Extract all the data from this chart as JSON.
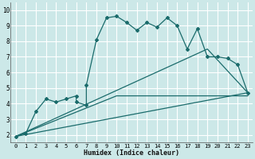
{
  "xlabel": "Humidex (Indice chaleur)",
  "bg_color": "#cce8e8",
  "grid_color": "#ffffff",
  "line_color": "#1a6b6b",
  "xlim": [
    -0.5,
    23.5
  ],
  "ylim": [
    1.5,
    10.5
  ],
  "xticks": [
    0,
    1,
    2,
    3,
    4,
    5,
    6,
    7,
    8,
    9,
    10,
    11,
    12,
    13,
    14,
    15,
    16,
    17,
    18,
    19,
    20,
    21,
    22,
    23
  ],
  "yticks": [
    2,
    3,
    4,
    5,
    6,
    7,
    8,
    9,
    10
  ],
  "line1_x": [
    0,
    1,
    2,
    3,
    4,
    5,
    6,
    6,
    7,
    7,
    8,
    9,
    10,
    11,
    12,
    13,
    14,
    15,
    16,
    17,
    18,
    19,
    20,
    21,
    22,
    23
  ],
  "line1_y": [
    1.9,
    2.1,
    3.5,
    4.3,
    4.1,
    4.3,
    4.5,
    4.1,
    3.9,
    5.2,
    8.1,
    9.5,
    9.6,
    9.2,
    8.7,
    9.2,
    8.9,
    9.5,
    9.0,
    7.5,
    8.8,
    7.0,
    7.0,
    6.9,
    6.5,
    4.7
  ],
  "line2_x": [
    0,
    23
  ],
  "line2_y": [
    1.9,
    4.7
  ],
  "line3_x": [
    0,
    19,
    23
  ],
  "line3_y": [
    1.9,
    7.5,
    4.7
  ],
  "line4_x": [
    0,
    10,
    23
  ],
  "line4_y": [
    1.9,
    4.5,
    4.5
  ]
}
